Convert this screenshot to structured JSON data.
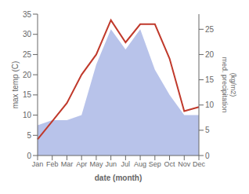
{
  "chart_data": {
    "type": "line",
    "xlabel": "date (month)",
    "ylabel": "max temp (C)",
    "y2label": "med. precipitation\n(kg/m2)",
    "categories": [
      "Jan",
      "Feb",
      "Mar",
      "Apr",
      "May",
      "Jun",
      "Jul",
      "Aug",
      "Sep",
      "Oct",
      "Nov",
      "Dec"
    ],
    "series": [
      {
        "type": "area",
        "axis": "y2",
        "color": "#b0bce8",
        "values": [
          6,
          7,
          7,
          8,
          18,
          25,
          21,
          25,
          17,
          12,
          8,
          8
        ]
      },
      {
        "type": "line",
        "color": "#c0392b",
        "marker": "none",
        "values": [
          4,
          8.5,
          13,
          20,
          25,
          33.5,
          28,
          32.5,
          32.5,
          24,
          11,
          12
        ]
      }
    ],
    "ylim": [
      0,
      35
    ],
    "yticks": [
      0,
      5,
      10,
      15,
      20,
      25,
      30,
      35
    ],
    "y2lim": [
      0,
      28
    ],
    "y2ticks": [
      0,
      5,
      10,
      15,
      20,
      25
    ],
    "grid": false
  }
}
